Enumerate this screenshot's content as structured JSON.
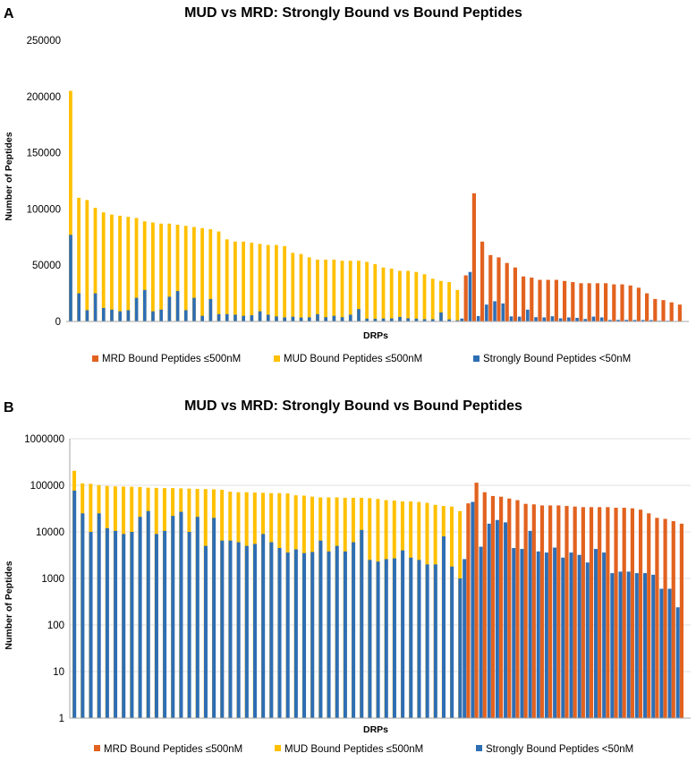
{
  "colors": {
    "mrd": "#E2621F",
    "mud": "#FFC000",
    "strong": "#2E6EB4",
    "grid": "#d9d9d9",
    "axis": "#a6a6a6"
  },
  "chart_data": [
    {
      "type": "bar",
      "panel": "A",
      "title": "MUD vs MRD: Strongly Bound vs Bound Peptides",
      "xlabel": "DRPs",
      "ylabel": "Number of Peptides",
      "ylim": [
        0,
        250000
      ],
      "yticks": [
        0,
        50000,
        100000,
        150000,
        200000,
        250000
      ],
      "ytick_labels": [
        "0",
        "50000",
        "100000",
        "150000",
        "200000",
        "250000"
      ],
      "scale": "linear",
      "legend_position": "bottom",
      "legend": [
        "MRD Bound Peptides ≤500nM",
        "MUD Bound Peptides ≤500nM",
        "Strongly Bound Peptides <50nM"
      ],
      "mud_bound": [
        205000,
        110000,
        108000,
        101000,
        97000,
        95000,
        94000,
        93000,
        92000,
        89000,
        88000,
        87000,
        87000,
        86000,
        85000,
        84000,
        83000,
        82000,
        80000,
        73000,
        71000,
        71000,
        70000,
        69000,
        68000,
        68000,
        67000,
        61000,
        60000,
        57000,
        55000,
        55000,
        55000,
        54000,
        54000,
        54000,
        53000,
        51000,
        48000,
        47000,
        45000,
        45000,
        44000,
        42000,
        38000,
        36000,
        35000,
        28000
      ],
      "mrd_bound": [
        41000,
        114000,
        71000,
        59000,
        57000,
        52000,
        48000,
        40000,
        39000,
        37000,
        37000,
        37000,
        36000,
        35000,
        34000,
        34000,
        34000,
        34000,
        33000,
        33000,
        32000,
        30000,
        25000,
        20000,
        19000,
        17000,
        15000
      ],
      "strong_mud": [
        77000,
        25000,
        10000,
        25000,
        12000,
        10500,
        9000,
        10000,
        21000,
        28000,
        9000,
        10500,
        22000,
        27000,
        10000,
        21000,
        5000,
        20000,
        6500,
        6500,
        6000,
        5000,
        5500,
        9000,
        6000,
        4500,
        3600,
        4200,
        3500,
        3700,
        6500,
        3800,
        5000,
        3800,
        6000,
        11000,
        2500,
        2300,
        2600,
        2700,
        4000,
        2800,
        2500,
        2000,
        2000,
        8000,
        1800,
        1000
      ],
      "strong_mrd": [
        2600,
        44000,
        4800,
        15000,
        18000,
        16000,
        4500,
        4300,
        10500,
        3800,
        3600,
        4600,
        2800,
        3600,
        3200,
        2200,
        4300,
        3600,
        1300,
        1400,
        1400,
        1300,
        1300,
        1200,
        600,
        600,
        240
      ]
    },
    {
      "type": "bar",
      "panel": "B",
      "title": "MUD vs MRD: Strongly Bound vs Bound Peptides",
      "xlabel": "DRPs",
      "ylabel": "Number of Peptides",
      "ylim": [
        1,
        1000000
      ],
      "yticks": [
        1,
        10,
        100,
        1000,
        10000,
        100000,
        1000000
      ],
      "ytick_labels": [
        "1",
        "10",
        "100",
        "1000",
        "10000",
        "100000",
        "1000000"
      ],
      "scale": "log",
      "legend_position": "bottom",
      "legend": [
        "MRD Bound Peptides ≤500nM",
        "MUD Bound Peptides ≤500nM",
        "Strongly Bound Peptides <50nM"
      ],
      "mud_bound": [
        205000,
        110000,
        108000,
        101000,
        97000,
        95000,
        94000,
        93000,
        92000,
        89000,
        88000,
        87000,
        87000,
        86000,
        85000,
        84000,
        83000,
        82000,
        80000,
        73000,
        71000,
        71000,
        70000,
        69000,
        68000,
        68000,
        67000,
        61000,
        60000,
        57000,
        55000,
        55000,
        55000,
        54000,
        54000,
        54000,
        53000,
        51000,
        48000,
        47000,
        45000,
        45000,
        44000,
        42000,
        38000,
        36000,
        35000,
        28000
      ],
      "mrd_bound": [
        41000,
        114000,
        71000,
        59000,
        57000,
        52000,
        48000,
        40000,
        39000,
        37000,
        37000,
        37000,
        36000,
        35000,
        34000,
        34000,
        34000,
        34000,
        33000,
        33000,
        32000,
        30000,
        25000,
        20000,
        19000,
        17000,
        15000
      ],
      "strong_mud": [
        77000,
        25000,
        10000,
        25000,
        12000,
        10500,
        9000,
        10000,
        21000,
        28000,
        9000,
        10500,
        22000,
        27000,
        10000,
        21000,
        5000,
        20000,
        6500,
        6500,
        6000,
        5000,
        5500,
        9000,
        6000,
        4500,
        3600,
        4200,
        3500,
        3700,
        6500,
        3800,
        5000,
        3800,
        6000,
        11000,
        2500,
        2300,
        2600,
        2700,
        4000,
        2800,
        2500,
        2000,
        2000,
        8000,
        1800,
        1000
      ],
      "strong_mrd": [
        2600,
        44000,
        4800,
        15000,
        18000,
        16000,
        4500,
        4300,
        10500,
        3800,
        3600,
        4600,
        2800,
        3600,
        3200,
        2200,
        4300,
        3600,
        1300,
        1400,
        1400,
        1300,
        1300,
        1200,
        600,
        600,
        240
      ]
    }
  ]
}
